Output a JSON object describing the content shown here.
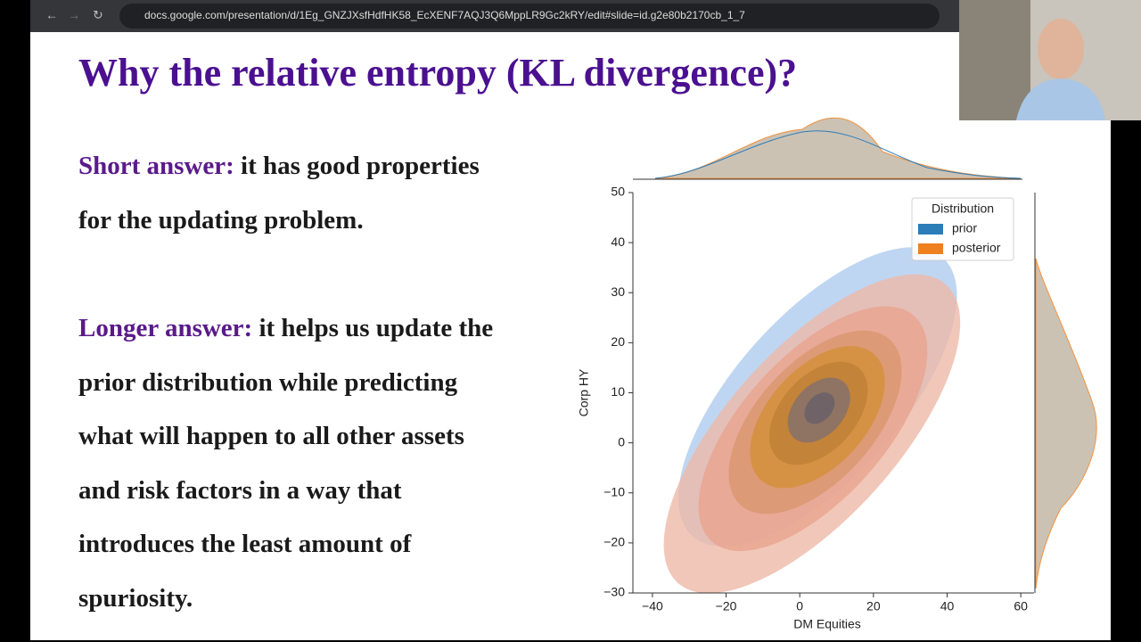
{
  "browser": {
    "url": "docs.google.com/presentation/d/1Eg_GNZJXsfHdfHK58_EcXENF7AQJ3Q6MppLR9Gc2kRY/edit#slide=id.g2e80b2170cb_1_7"
  },
  "slide": {
    "title": "Why the relative entropy (KL divergence)?",
    "short_answer": {
      "label": "Short answer:",
      "lines": [
        "it has good properties",
        "for the updating problem."
      ]
    },
    "longer_answer": {
      "label": "Longer answer:",
      "lines": [
        "it helps us update the",
        "prior distribution while predicting",
        "what will happen to all other assets",
        "and risk factors in a way that",
        "introduces the least amount of",
        "spuriosity."
      ]
    }
  },
  "chart_data": {
    "type": "kde_joint",
    "x_label": "DM Equities",
    "y_label": "Corp HY",
    "legend_title": "Distribution",
    "legend": "upper right",
    "series": [
      {
        "name": "prior",
        "color": "#2a7db8"
      },
      {
        "name": "posterior",
        "color": "#ef8020"
      }
    ],
    "xlim": [
      -45.3,
      63.6
    ],
    "ylim": [
      -30,
      50
    ],
    "xticks": [
      {
        "value": -40,
        "label": "−40"
      },
      {
        "value": -20,
        "label": "−20"
      },
      0,
      20,
      40,
      60
    ],
    "yticks": [
      {
        "value": -30,
        "label": "−30"
      },
      {
        "value": -20,
        "label": "−20"
      },
      {
        "value": -10,
        "label": "−10"
      },
      0,
      10,
      20,
      30,
      40,
      50
    ]
  }
}
